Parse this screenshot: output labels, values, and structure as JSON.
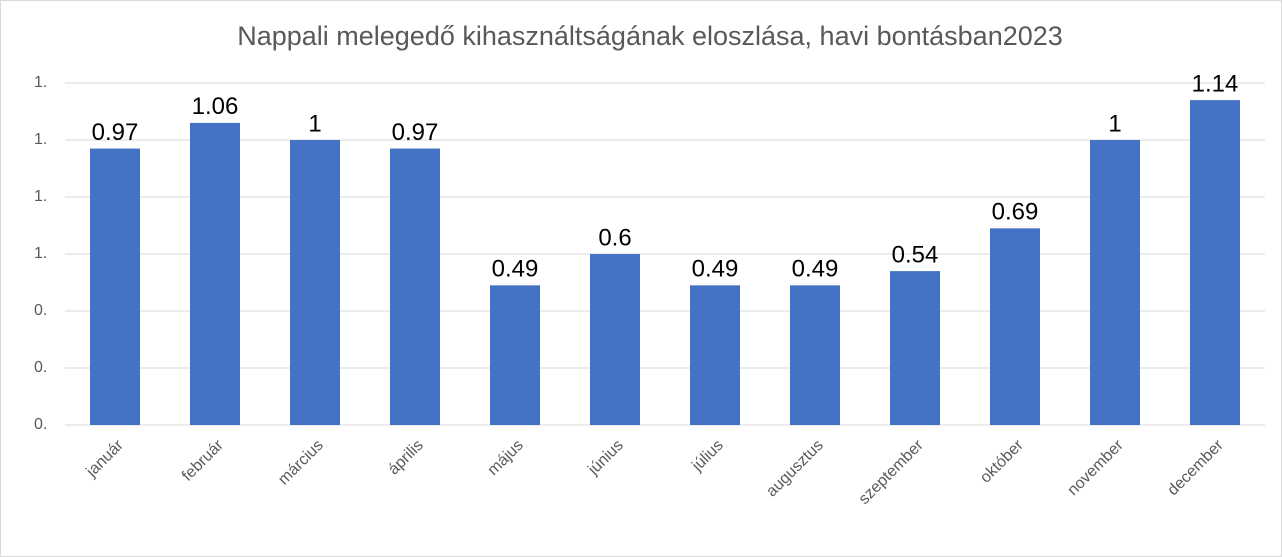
{
  "chart_data": {
    "type": "bar",
    "title": "Nappali melegedő kihasználtságának eloszlása, havi bontásban2023",
    "categories": [
      "január",
      "február",
      "március",
      "április",
      "május",
      "június",
      "július",
      "augusztus",
      "szeptember",
      "október",
      "november",
      "december"
    ],
    "values": [
      0.97,
      1.06,
      1,
      0.97,
      0.49,
      0.6,
      0.49,
      0.49,
      0.54,
      0.69,
      1,
      1.14
    ],
    "color": "#4472c4",
    "ylim": [
      0,
      1.2
    ],
    "yticks": [
      {
        "value": 0,
        "label": "0."
      },
      {
        "value": 0.2,
        "label": "0."
      },
      {
        "value": 0.4,
        "label": "0."
      },
      {
        "value": 0.6,
        "label": "1."
      },
      {
        "value": 0.8,
        "label": "1."
      },
      {
        "value": 1.0,
        "label": "1."
      },
      {
        "value": 1.2,
        "label": "1."
      }
    ],
    "grid": true
  }
}
